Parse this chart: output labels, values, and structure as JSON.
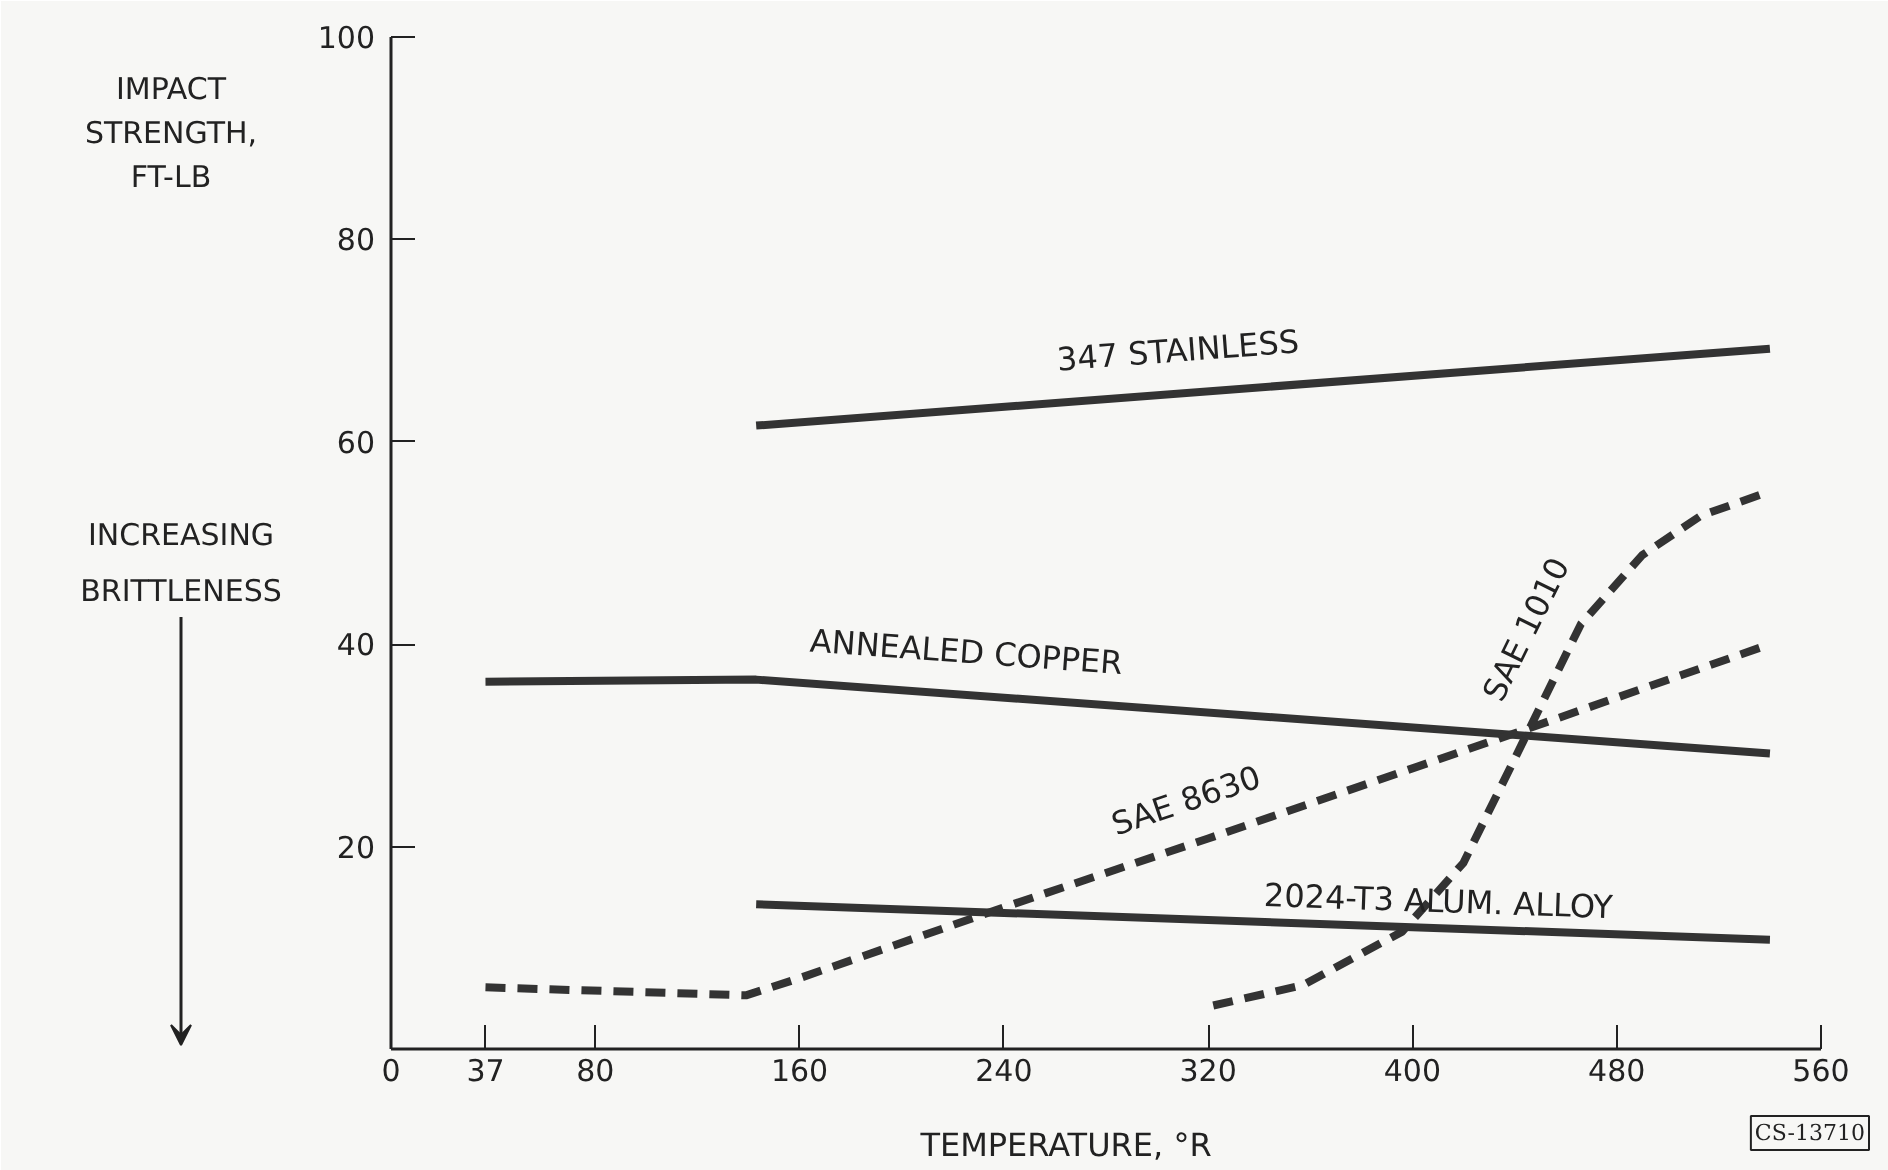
{
  "chart_data": {
    "type": "line",
    "xlabel": "TEMPERATURE, °R",
    "ylabel": "IMPACT STRENGTH, FT-LB",
    "xlim": [
      0,
      560
    ],
    "ylim": [
      0,
      100
    ],
    "xticks": [
      0,
      37,
      80,
      160,
      240,
      320,
      400,
      480,
      560
    ],
    "yticks": [
      20,
      40,
      60,
      80,
      100
    ],
    "grid": false,
    "legend": false,
    "marker": "none",
    "series": [
      {
        "name": "347 STAINLESS",
        "color": "#333333",
        "line_style": "solid",
        "x": [
          143,
          540
        ],
        "values": [
          61.6,
          69.2
        ]
      },
      {
        "name": "ANNEALED COPPER",
        "color": "#333333",
        "line_style": "solid",
        "x": [
          37,
          143,
          540
        ],
        "values": [
          36.3,
          36.5,
          29.2
        ]
      },
      {
        "name": "2024-T3 ALUM. ALLOY",
        "color": "#333333",
        "line_style": "solid",
        "x": [
          143,
          540
        ],
        "values": [
          14.3,
          10.8
        ]
      },
      {
        "name": "SAE 8630",
        "color": "#333333",
        "line_style": "dashed",
        "x": [
          37,
          139,
          160,
          240,
          320,
          440,
          540
        ],
        "values": [
          6.1,
          5.3,
          7.0,
          14.0,
          20.8,
          31.2,
          40.0
        ]
      },
      {
        "name": "SAE 1010",
        "color": "#333333",
        "line_style": "dashed",
        "x": [
          322,
          357,
          396,
          420,
          443,
          466,
          490,
          513,
          540
        ],
        "values": [
          4.3,
          6.3,
          11.6,
          18.4,
          30.2,
          42.0,
          48.8,
          52.7,
          55.1
        ]
      }
    ],
    "annotations": [
      "INCREASING BRITTLENESS",
      "CS-13710"
    ]
  }
}
